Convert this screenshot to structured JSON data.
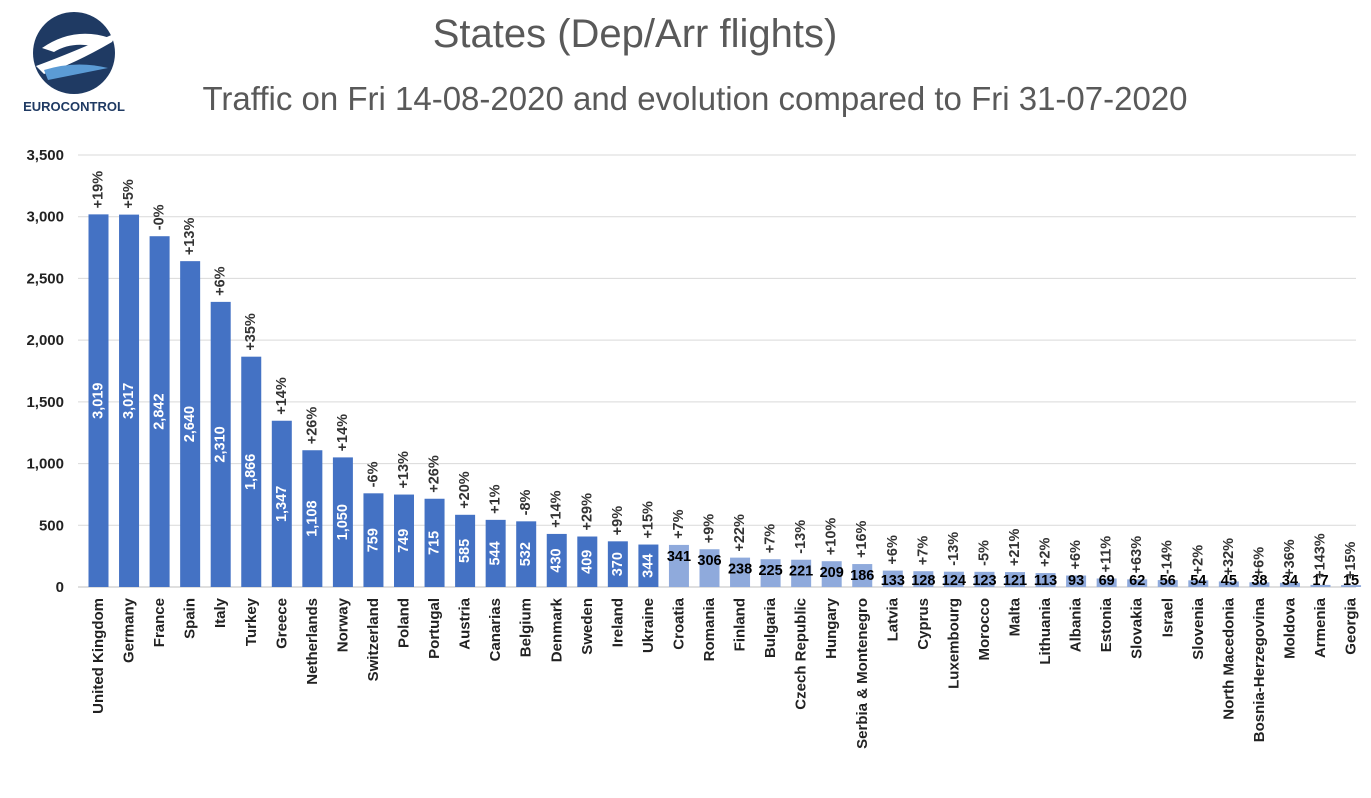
{
  "logo": {
    "text": "EUROCONTROL"
  },
  "chart_data": {
    "type": "bar",
    "title": "States (Dep/Arr flights)",
    "subtitle": "Traffic on Fri 14-08-2020 and evolution compared to Fri 31-07-2020",
    "ylim": [
      0,
      3500
    ],
    "yticks": [
      "0",
      "500",
      "1,000",
      "1,500",
      "2,000",
      "2,500",
      "3,000",
      "3,500"
    ],
    "grid": true,
    "colors": {
      "dark": "#4472c4",
      "light": "#8faadc"
    },
    "categories": [
      "United Kingdom",
      "Germany",
      "France",
      "Spain",
      "Italy",
      "Turkey",
      "Greece",
      "Netherlands",
      "Norway",
      "Switzerland",
      "Poland",
      "Portugal",
      "Austria",
      "Canarias",
      "Belgium",
      "Denmark",
      "Sweden",
      "Ireland",
      "Ukraine",
      "Croatia",
      "Romania",
      "Finland",
      "Bulgaria",
      "Czech Republic",
      "Hungary",
      "Serbia & Montenegro",
      "Latvia",
      "Cyprus",
      "Luxembourg",
      "Morocco",
      "Malta",
      "Lithuania",
      "Albania",
      "Estonia",
      "Slovakia",
      "Israel",
      "Slovenia",
      "North Macedonia",
      "Bosnia-Herzegovina",
      "Moldova",
      "Armenia",
      "Georgia"
    ],
    "values": [
      3019,
      3017,
      2842,
      2640,
      2310,
      1866,
      1347,
      1108,
      1050,
      759,
      749,
      715,
      585,
      544,
      532,
      430,
      409,
      370,
      344,
      341,
      306,
      238,
      225,
      221,
      209,
      186,
      133,
      128,
      124,
      123,
      121,
      113,
      93,
      69,
      62,
      56,
      54,
      45,
      38,
      34,
      17,
      15
    ],
    "value_labels": [
      "3,019",
      "3,017",
      "2,842",
      "2,640",
      "2,310",
      "1,866",
      "1,347",
      "1,108",
      "1,050",
      "759",
      "749",
      "715",
      "585",
      "544",
      "532",
      "430",
      "409",
      "370",
      "344",
      "341",
      "306",
      "238",
      "225",
      "221",
      "209",
      "186",
      "133",
      "128",
      "124",
      "123",
      "121",
      "113",
      "93",
      "69",
      "62",
      "56",
      "54",
      "45",
      "38",
      "34",
      "17",
      "15"
    ],
    "changes": [
      "+19%",
      "+5%",
      "-0%",
      "+13%",
      "+6%",
      "+35%",
      "+14%",
      "+26%",
      "+14%",
      "-6%",
      "+13%",
      "+26%",
      "+20%",
      "+1%",
      "-8%",
      "+14%",
      "+29%",
      "+9%",
      "+15%",
      "+7%",
      "+9%",
      "+22%",
      "+7%",
      "-13%",
      "+10%",
      "+16%",
      "+6%",
      "+7%",
      "-13%",
      "-5%",
      "+21%",
      "+2%",
      "+6%",
      "+11%",
      "+63%",
      "-14%",
      "+2%",
      "+32%",
      "+6%",
      "+36%",
      "+143%",
      "+15%"
    ]
  }
}
